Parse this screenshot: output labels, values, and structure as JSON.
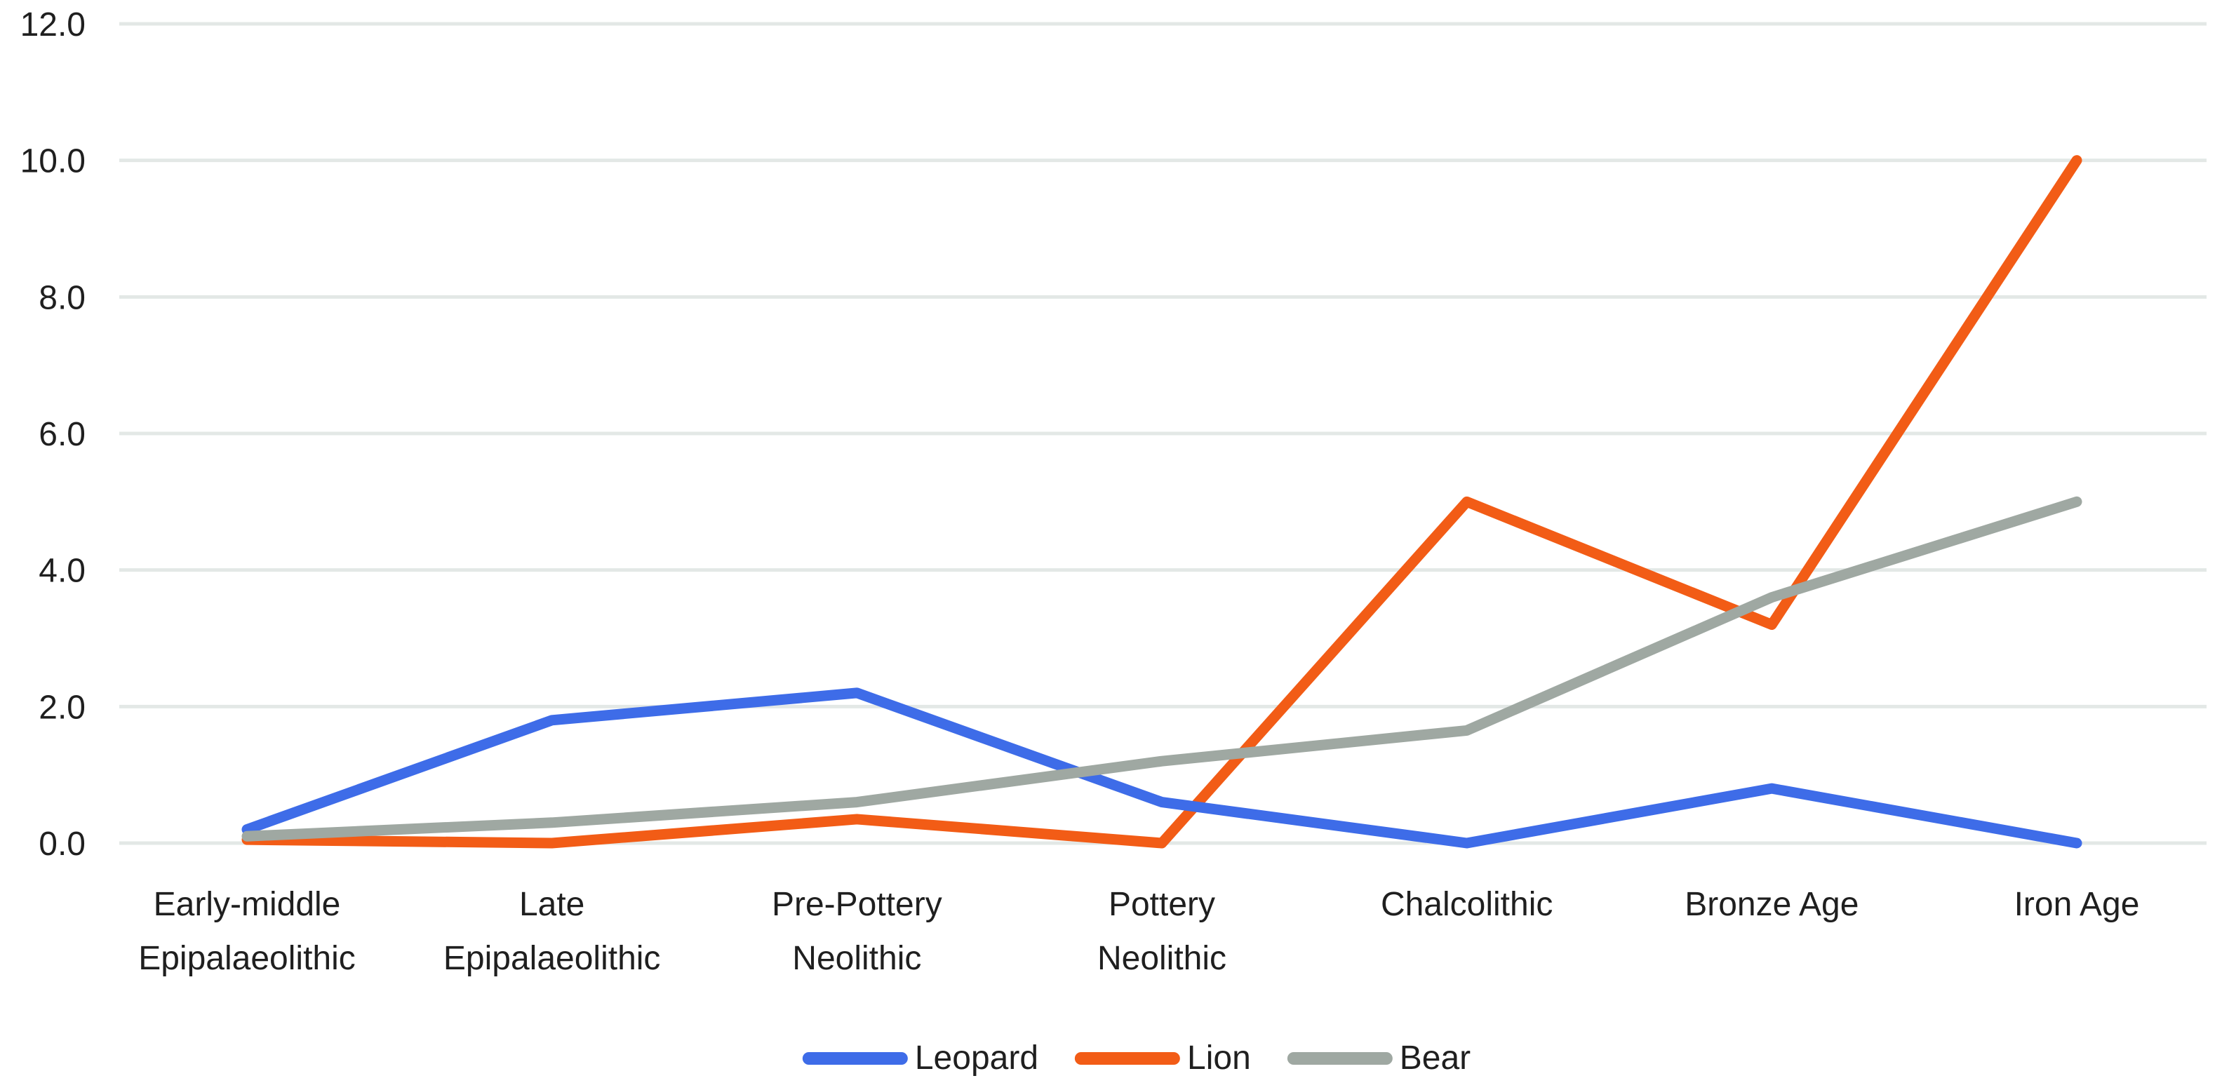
{
  "figure": {
    "background_color": "#FFFFFF",
    "text_color": "#1F1F1F",
    "gridline_color": "#E3E8E6"
  },
  "chart_data": {
    "type": "line",
    "title": "",
    "categories": [
      "Early-middle Epipalaeolithic",
      "Late Epipalaeolithic",
      "Pre-Pottery Neolithic",
      "Pottery Neolithic",
      "Chalcolithic",
      "Bronze Age",
      "Iron Age"
    ],
    "category_label_lines": [
      [
        "Early-middle",
        "Epipalaeolithic"
      ],
      [
        "Late",
        "Epipalaeolithic"
      ],
      [
        "Pre-Pottery",
        "Neolithic"
      ],
      [
        "Pottery",
        "Neolithic"
      ],
      [
        "Chalcolithic"
      ],
      [
        "Bronze Age"
      ],
      [
        "Iron Age"
      ]
    ],
    "series": [
      {
        "name": "Leopard",
        "color": "#3E6CE8",
        "values": [
          0.2,
          1.8,
          2.2,
          0.6,
          0.0,
          0.8,
          0.0
        ],
        "z": 2
      },
      {
        "name": "Lion",
        "color": "#F25C16",
        "values": [
          0.05,
          0.0,
          0.35,
          0.0,
          5.0,
          3.2,
          10.0
        ],
        "z": 1
      },
      {
        "name": "Bear",
        "color": "#9FA8A2",
        "values": [
          0.1,
          0.3,
          0.6,
          1.2,
          1.65,
          3.6,
          5.0
        ],
        "z": 3
      }
    ],
    "y_axis": {
      "min": 0,
      "max": 12,
      "tick_step": 2,
      "tick_labels": [
        "0.0",
        "2.0",
        "4.0",
        "6.0",
        "8.0",
        "10.0",
        "12.0"
      ]
    },
    "legend": {
      "position": "bottom",
      "entries": [
        "Leopard",
        "Lion",
        "Bear"
      ]
    },
    "grid": true
  }
}
